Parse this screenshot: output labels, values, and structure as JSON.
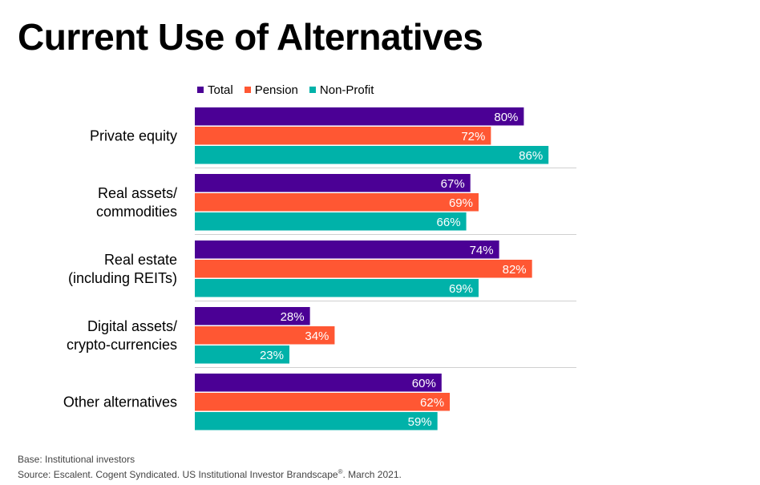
{
  "header": {
    "title": "Current Use of Alternatives"
  },
  "chart_data": {
    "type": "bar",
    "orientation": "horizontal",
    "title": "Current Use of Alternatives",
    "categories": [
      [
        "Private equity"
      ],
      [
        "Real assets/",
        "commodities"
      ],
      [
        "Real estate",
        "(including  REITs)"
      ],
      [
        "Digital assets/",
        "crypto-currencies"
      ],
      [
        "Other alternatives"
      ]
    ],
    "series": [
      {
        "name": "Total",
        "color": "#4B0095",
        "values": [
          80,
          67,
          74,
          28,
          60
        ]
      },
      {
        "name": "Pension",
        "color": "#FF5733",
        "values": [
          72,
          69,
          82,
          34,
          62
        ]
      },
      {
        "name": "Non-Profit",
        "color": "#00B2A9",
        "values": [
          86,
          66,
          69,
          23,
          59
        ]
      }
    ],
    "value_suffix": "%",
    "xlim": [
      0,
      100
    ],
    "legend_position": "top",
    "grid": false
  },
  "footer": {
    "base": "Base: Institutional  investors",
    "source": "Source: Escalent. Cogent  Syndicated. US Institutional Investor  Brandscape",
    "source_mark": "®",
    "source_tail": ". March 2021."
  }
}
